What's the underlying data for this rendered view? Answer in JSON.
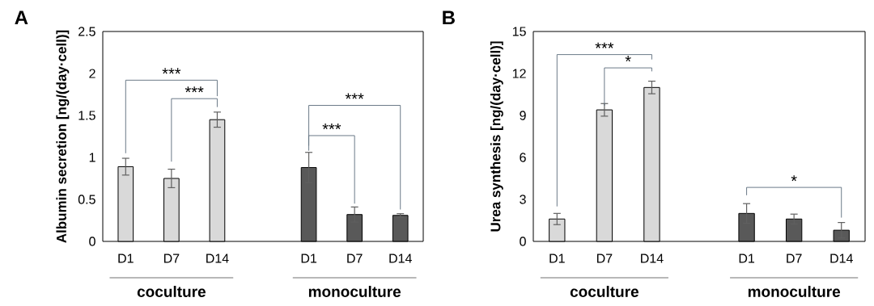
{
  "chart_data": [
    {
      "type": "bar",
      "title": "A",
      "ylabel": "Albumin secretion [ng/(day·cell)]",
      "categories": [
        "D1",
        "D7",
        "D14",
        null,
        "D1",
        "D7",
        "D14"
      ],
      "series": [
        {
          "color": "#d9d9d9",
          "values": [
            0.89,
            0.75,
            1.45,
            null,
            null,
            null,
            null
          ],
          "errors": [
            0.1,
            0.11,
            0.09,
            null,
            null,
            null,
            null
          ]
        },
        {
          "color": "#595959",
          "values": [
            null,
            null,
            null,
            null,
            0.88,
            0.32,
            0.31
          ],
          "errors": [
            null,
            null,
            null,
            null,
            0.18,
            0.09,
            0.02
          ]
        }
      ],
      "ylim": [
        0,
        2.5
      ],
      "yticks": [
        0,
        0.5,
        1,
        1.5,
        2,
        2.5
      ],
      "annotations": [
        "***",
        "***",
        "***",
        "***",
        "coculture",
        "monoculture"
      ]
    },
    {
      "type": "bar",
      "title": "B",
      "ylabel": "Urea synthesis [ng/(day·cell)]",
      "categories": [
        "D1",
        "D7",
        "D14",
        null,
        "D1",
        "D7",
        "D14"
      ],
      "series": [
        {
          "color": "#d9d9d9",
          "values": [
            1.6,
            9.4,
            11.0,
            null,
            null,
            null,
            null
          ],
          "errors": [
            0.4,
            0.45,
            0.45,
            null,
            null,
            null,
            null
          ]
        },
        {
          "color": "#595959",
          "values": [
            null,
            null,
            null,
            null,
            2.0,
            1.6,
            0.8
          ],
          "errors": [
            null,
            null,
            null,
            null,
            0.7,
            0.35,
            0.55
          ]
        }
      ],
      "ylim": [
        0,
        15
      ],
      "yticks": [
        0,
        3,
        6,
        9,
        12,
        15
      ],
      "annotations": [
        "***",
        "*",
        "*",
        "coculture",
        "monoculture"
      ]
    }
  ]
}
